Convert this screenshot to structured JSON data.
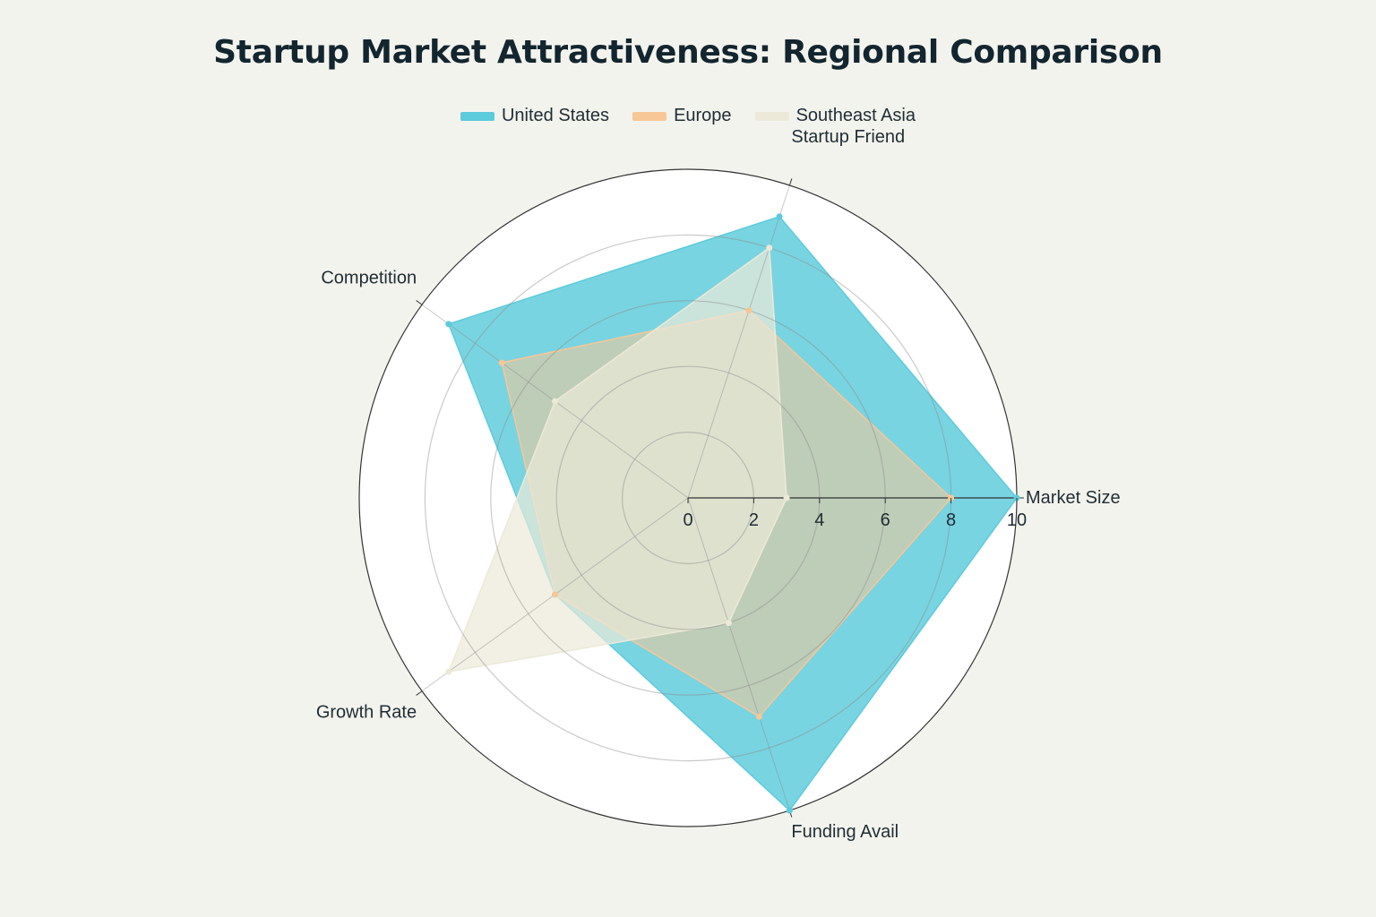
{
  "chart_data": {
    "type": "radar",
    "title": "Startup Market Attractiveness: Regional Comparison",
    "axes": [
      "Market Size",
      "Startup Friend",
      "Competition",
      "Growth Rate",
      "Funding Avail"
    ],
    "rlim": [
      0,
      10
    ],
    "r_ticks": [
      "0",
      "2",
      "4",
      "6",
      "8",
      "10"
    ],
    "r_tick_values": [
      0,
      2,
      4,
      6,
      8,
      10
    ],
    "legend_position": "top-center",
    "series": [
      {
        "name": "United States",
        "values": [
          10,
          9,
          9,
          5,
          10
        ],
        "color": "#5ccbdb"
      },
      {
        "name": "Europe",
        "values": [
          8,
          6,
          7,
          5,
          7
        ],
        "color": "#f7c797"
      },
      {
        "name": "Southeast Asia",
        "values": [
          3,
          8,
          5,
          9,
          4
        ],
        "color": "#ece9d8"
      }
    ]
  }
}
